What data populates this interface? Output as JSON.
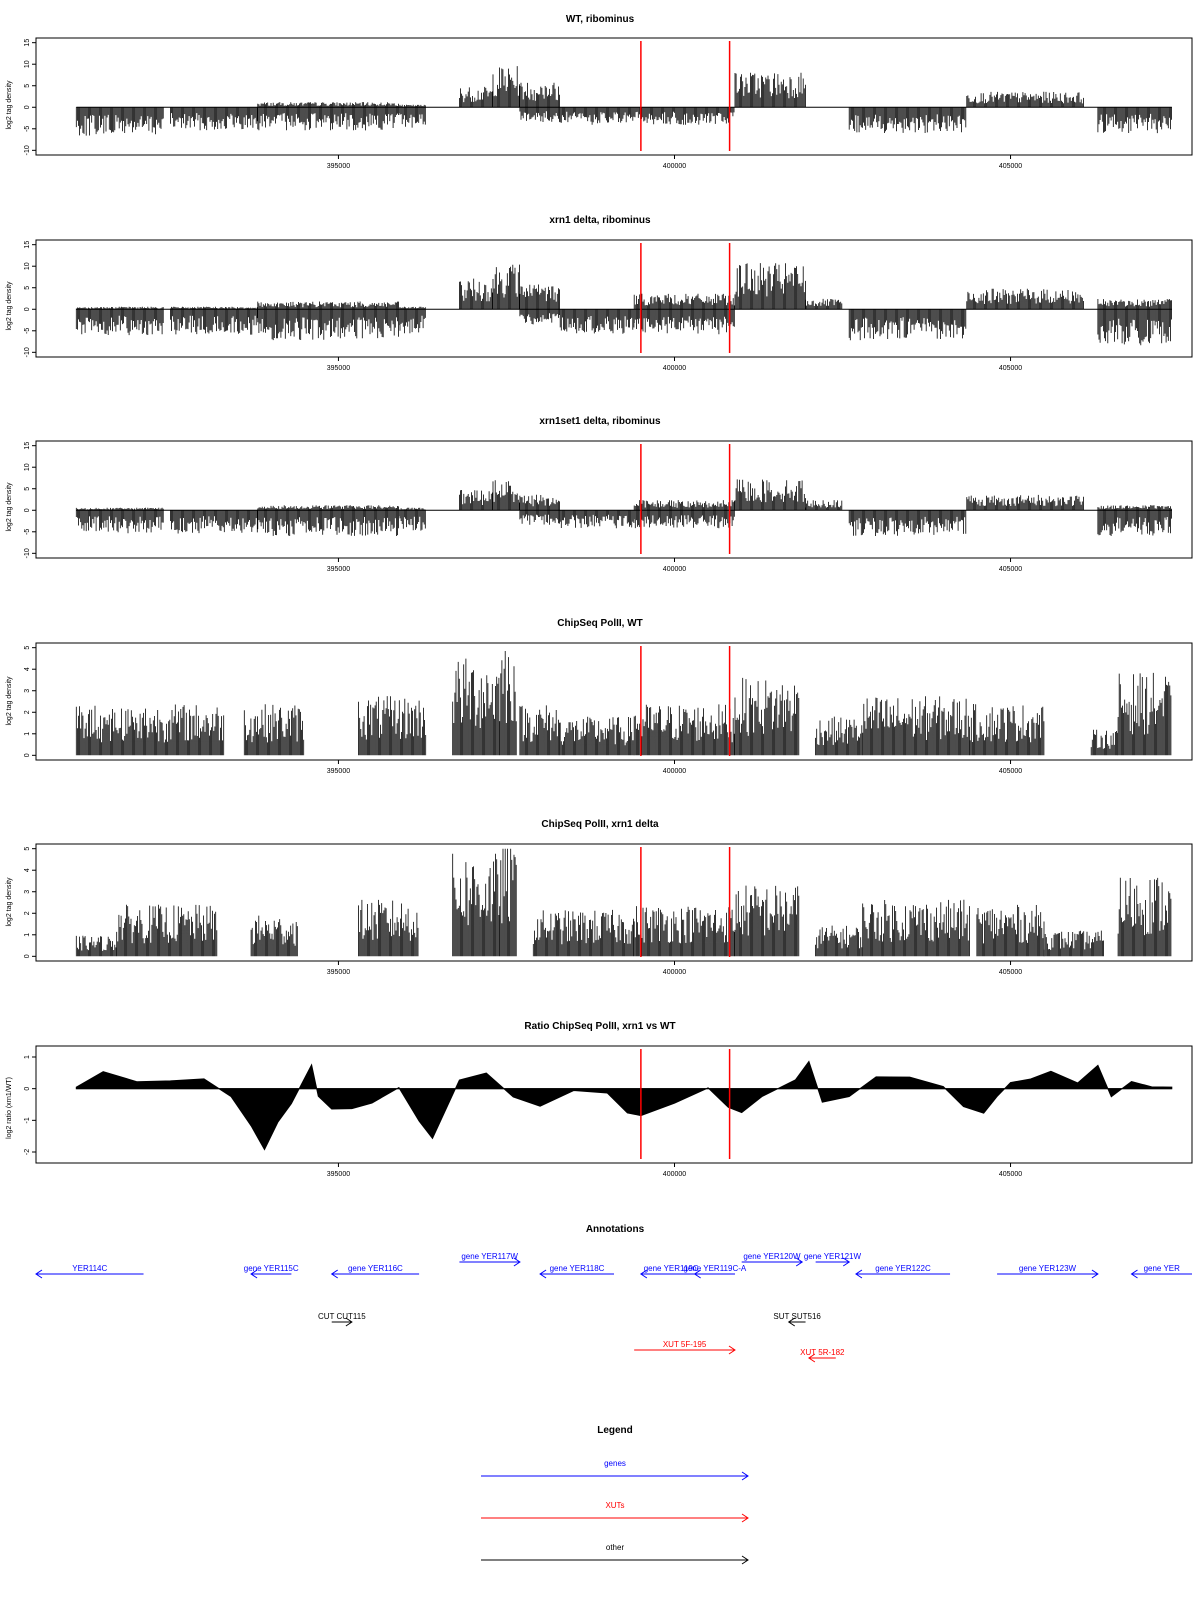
{
  "colors": {
    "genes": "#0000ff",
    "xuts": "#ff0000",
    "other": "#000000",
    "marker": "#ff0000",
    "data": "#000000"
  },
  "chart_data": [
    {
      "type": "bar",
      "id": "wt_ribominus",
      "title": "WT, ribominus",
      "ylabel": "log2 tag density",
      "ylim": [
        -10,
        15
      ],
      "yticks": [
        "-10",
        "-5",
        "0",
        "5",
        "10",
        "15"
      ],
      "xlim": [
        390500,
        407700
      ],
      "xticks": [
        "395000",
        "400000",
        "405000"
      ],
      "markers": [
        399500,
        400820
      ],
      "segments": [
        {
          "x": [
            391100,
            392400
          ],
          "pos": 0,
          "neg": -5.5
        },
        {
          "x": [
            392500,
            393800
          ],
          "pos": 0,
          "neg": -4.5
        },
        {
          "x": [
            393800,
            395900
          ],
          "pos": 1,
          "neg": -4.5
        },
        {
          "x": [
            395900,
            396300
          ],
          "pos": 0.5,
          "neg": -4
        },
        {
          "x": [
            396800,
            397300
          ],
          "pos": 4,
          "neg": 0
        },
        {
          "x": [
            397300,
            397700
          ],
          "pos": 8,
          "neg": 0
        },
        {
          "x": [
            397700,
            398300
          ],
          "pos": 5,
          "neg": -3
        },
        {
          "x": [
            398300,
            400900
          ],
          "pos": 0,
          "neg": -3.5
        },
        {
          "x": [
            400900,
            401950
          ],
          "pos": 7,
          "neg": 0
        },
        {
          "x": [
            402600,
            404350
          ],
          "pos": 0,
          "neg": -5
        },
        {
          "x": [
            404350,
            406100
          ],
          "pos": 3,
          "neg": 0
        },
        {
          "x": [
            406300,
            407400
          ],
          "pos": 0,
          "neg": -5
        }
      ]
    },
    {
      "type": "bar",
      "id": "xrn1_ribominus",
      "title": "xrn1 delta, ribominus",
      "ylabel": "log2 tag density",
      "ylim": [
        -10,
        15
      ],
      "yticks": [
        "-10",
        "-5",
        "0",
        "5",
        "10",
        "15"
      ],
      "xlim": [
        390500,
        407700
      ],
      "xticks": [
        "395000",
        "400000",
        "405000"
      ],
      "markers": [
        399500,
        400820
      ],
      "segments": [
        {
          "x": [
            391100,
            392400
          ],
          "pos": 0.5,
          "neg": -5
        },
        {
          "x": [
            392500,
            393800
          ],
          "pos": 0.5,
          "neg": -5
        },
        {
          "x": [
            393800,
            395900
          ],
          "pos": 1.5,
          "neg": -6
        },
        {
          "x": [
            395900,
            396300
          ],
          "pos": 0.5,
          "neg": -5
        },
        {
          "x": [
            396800,
            397300
          ],
          "pos": 6,
          "neg": 0
        },
        {
          "x": [
            397300,
            397700
          ],
          "pos": 9,
          "neg": 0
        },
        {
          "x": [
            397700,
            398300
          ],
          "pos": 5,
          "neg": -3
        },
        {
          "x": [
            398300,
            399400
          ],
          "pos": 0,
          "neg": -5
        },
        {
          "x": [
            399400,
            400900
          ],
          "pos": 3,
          "neg": -5
        },
        {
          "x": [
            400900,
            401950
          ],
          "pos": 9,
          "neg": 0
        },
        {
          "x": [
            401950,
            402500
          ],
          "pos": 2,
          "neg": 0
        },
        {
          "x": [
            402600,
            404350
          ],
          "pos": 0,
          "neg": -6
        },
        {
          "x": [
            404350,
            406100
          ],
          "pos": 4,
          "neg": 0
        },
        {
          "x": [
            406300,
            407400
          ],
          "pos": 2,
          "neg": -7
        }
      ]
    },
    {
      "type": "bar",
      "id": "xrn1set1_ribominus",
      "title": "xrn1set1 delta, ribominus",
      "ylabel": "log2 tag density",
      "ylim": [
        -10,
        15
      ],
      "yticks": [
        "-10",
        "-5",
        "0",
        "5",
        "10",
        "15"
      ],
      "xlim": [
        390500,
        407700
      ],
      "xticks": [
        "395000",
        "400000",
        "405000"
      ],
      "markers": [
        399500,
        400820
      ],
      "segments": [
        {
          "x": [
            391100,
            392400
          ],
          "pos": 0.5,
          "neg": -4.5
        },
        {
          "x": [
            392500,
            393800
          ],
          "pos": 0,
          "neg": -4.5
        },
        {
          "x": [
            393800,
            395900
          ],
          "pos": 1,
          "neg": -5
        },
        {
          "x": [
            395900,
            396300
          ],
          "pos": 0.5,
          "neg": -4
        },
        {
          "x": [
            396800,
            397300
          ],
          "pos": 4,
          "neg": 0
        },
        {
          "x": [
            397300,
            397700
          ],
          "pos": 6,
          "neg": 0
        },
        {
          "x": [
            397700,
            398300
          ],
          "pos": 3,
          "neg": -3
        },
        {
          "x": [
            398300,
            399400
          ],
          "pos": 0,
          "neg": -3.5
        },
        {
          "x": [
            399400,
            400900
          ],
          "pos": 2,
          "neg": -3.5
        },
        {
          "x": [
            400900,
            401950
          ],
          "pos": 6,
          "neg": 0
        },
        {
          "x": [
            401950,
            402500
          ],
          "pos": 2,
          "neg": 0
        },
        {
          "x": [
            402600,
            404350
          ],
          "pos": 0,
          "neg": -5
        },
        {
          "x": [
            404350,
            406100
          ],
          "pos": 3,
          "neg": 0
        },
        {
          "x": [
            406300,
            407400
          ],
          "pos": 1,
          "neg": -5
        }
      ]
    },
    {
      "type": "bar",
      "id": "chipseq_wt",
      "title": "ChipSeq PolII, WT",
      "ylabel": "log2 tag density",
      "ylim": [
        0,
        5
      ],
      "yticks": [
        "0",
        "1",
        "2",
        "3",
        "4",
        "5"
      ],
      "xlim": [
        390500,
        407700
      ],
      "xticks": [
        "395000",
        "400000",
        "405000"
      ],
      "markers": [
        399500,
        400820
      ],
      "segments": [
        {
          "x": [
            391100,
            393300
          ],
          "pos": 2
        },
        {
          "x": [
            393600,
            394500
          ],
          "pos": 2
        },
        {
          "x": [
            395300,
            396300
          ],
          "pos": 2.3
        },
        {
          "x": [
            396700,
            397400
          ],
          "pos": 3.8
        },
        {
          "x": [
            397400,
            397650
          ],
          "pos": 4.6
        },
        {
          "x": [
            397700,
            398300
          ],
          "pos": 2
        },
        {
          "x": [
            398300,
            399400
          ],
          "pos": 1.5
        },
        {
          "x": [
            399400,
            400900
          ],
          "pos": 2
        },
        {
          "x": [
            400900,
            401850
          ],
          "pos": 3
        },
        {
          "x": [
            402100,
            402800
          ],
          "pos": 1.5
        },
        {
          "x": [
            402800,
            404400
          ],
          "pos": 2.3
        },
        {
          "x": [
            404400,
            405500
          ],
          "pos": 2
        },
        {
          "x": [
            406200,
            406600
          ],
          "pos": 1
        },
        {
          "x": [
            406600,
            407400
          ],
          "pos": 3.2
        }
      ]
    },
    {
      "type": "bar",
      "id": "chipseq_xrn1",
      "title": "ChipSeq PolII, xrn1 delta",
      "ylabel": "log2 tag density",
      "ylim": [
        0,
        5
      ],
      "yticks": [
        "0",
        "1",
        "2",
        "3",
        "4",
        "5"
      ],
      "xlim": [
        390500,
        407700
      ],
      "xticks": [
        "395000",
        "400000",
        "405000"
      ],
      "markers": [
        399500,
        400820
      ],
      "segments": [
        {
          "x": [
            391100,
            391700
          ],
          "pos": 0.8
        },
        {
          "x": [
            391700,
            393200
          ],
          "pos": 2
        },
        {
          "x": [
            393700,
            394400
          ],
          "pos": 1.6
        },
        {
          "x": [
            395300,
            396200
          ],
          "pos": 2.2
        },
        {
          "x": [
            396700,
            397400
          ],
          "pos": 4
        },
        {
          "x": [
            397400,
            397650
          ],
          "pos": 4.4
        },
        {
          "x": [
            397900,
            399400
          ],
          "pos": 1.8
        },
        {
          "x": [
            399400,
            400900
          ],
          "pos": 2
        },
        {
          "x": [
            400900,
            401850
          ],
          "pos": 2.8
        },
        {
          "x": [
            402100,
            402800
          ],
          "pos": 1.2
        },
        {
          "x": [
            402800,
            404400
          ],
          "pos": 2.2
        },
        {
          "x": [
            404500,
            405500
          ],
          "pos": 2
        },
        {
          "x": [
            405500,
            406400
          ],
          "pos": 1
        },
        {
          "x": [
            406600,
            407400
          ],
          "pos": 3.2
        }
      ]
    },
    {
      "type": "area",
      "id": "ratio_chipseq",
      "title": "Ratio ChipSeq PolII, xrn1 vs WT",
      "ylabel": "log2 ratio (xrn1/WT)",
      "ylim": [
        -2.2,
        1.2
      ],
      "yticks": [
        "-2",
        "-1",
        "0",
        "1"
      ],
      "xlim": [
        390500,
        407700
      ],
      "xticks": [
        "395000",
        "400000",
        "405000"
      ],
      "markers": [
        399500,
        400820
      ],
      "x": [
        391100,
        391500,
        392000,
        392500,
        393000,
        393400,
        393700,
        393900,
        394100,
        394300,
        394600,
        394700,
        394900,
        395200,
        395500,
        395900,
        396200,
        396400,
        396800,
        397200,
        397600,
        398000,
        398500,
        399000,
        399300,
        399500,
        400000,
        400500,
        400800,
        401000,
        401300,
        401800,
        402000,
        402200,
        402600,
        403000,
        403500,
        404000,
        404300,
        404600,
        404800,
        405000,
        405300,
        405600,
        406000,
        406300,
        406500,
        406800,
        407100,
        407400
      ],
      "values": [
        0,
        0.5,
        0.2,
        0.2,
        0.3,
        -0.2,
        -1.2,
        -2.0,
        -1.0,
        -0.5,
        0.8,
        -0.3,
        -0.6,
        -0.7,
        -0.5,
        0.1,
        -1.0,
        -1.5,
        0.2,
        0.5,
        -0.2,
        -0.6,
        0,
        -0.2,
        -0.7,
        -0.8,
        -0.4,
        0,
        -0.6,
        -0.8,
        -0.3,
        0.3,
        0.8,
        -0.5,
        -0.3,
        0.3,
        0.4,
        0.1,
        -0.5,
        -0.8,
        -0.3,
        0.2,
        0.3,
        0.5,
        0.2,
        0.8,
        -0.3,
        0.3,
        0.1,
        0.1
      ]
    }
  ],
  "annotations": {
    "title": "Annotations",
    "xlim": [
      390500,
      407700
    ],
    "items": [
      {
        "label": "YER114C",
        "start": 390500,
        "end": 392100,
        "dir": "left",
        "row": 0,
        "cat": "genes"
      },
      {
        "label": "gene YER115C",
        "start": 393700,
        "end": 394300,
        "dir": "left",
        "row": 0,
        "cat": "genes"
      },
      {
        "label": "gene YER116C",
        "start": 394900,
        "end": 396200,
        "dir": "left",
        "row": 0,
        "cat": "genes"
      },
      {
        "label": "gene YER117W",
        "start": 396800,
        "end": 397700,
        "dir": "right",
        "row": -1,
        "cat": "genes"
      },
      {
        "label": "gene YER118C",
        "start": 398000,
        "end": 399100,
        "dir": "left",
        "row": 0,
        "cat": "genes"
      },
      {
        "label": "gene YER119C",
        "start": 399500,
        "end": 400400,
        "dir": "left",
        "row": 0,
        "cat": "genes"
      },
      {
        "label": "gene YER119C-A",
        "start": 400300,
        "end": 400900,
        "dir": "left",
        "row": 0,
        "cat": "genes"
      },
      {
        "label": "gene YER120W",
        "start": 401000,
        "end": 401900,
        "dir": "right",
        "row": -1,
        "cat": "genes"
      },
      {
        "label": "gene YER121W",
        "start": 402100,
        "end": 402600,
        "dir": "right",
        "row": -1,
        "cat": "genes"
      },
      {
        "label": "gene YER122C",
        "start": 402700,
        "end": 404100,
        "dir": "left",
        "row": 0,
        "cat": "genes"
      },
      {
        "label": "gene YER123W",
        "start": 404800,
        "end": 406300,
        "dir": "right",
        "row": 0,
        "cat": "genes"
      },
      {
        "label": "gene YER",
        "start": 406800,
        "end": 407700,
        "dir": "left",
        "row": 0,
        "cat": "genes"
      },
      {
        "label": "CUT CUT115",
        "start": 394900,
        "end": 395200,
        "dir": "right",
        "row": 1,
        "cat": "other"
      },
      {
        "label": "SUT SUT516",
        "start": 401700,
        "end": 401950,
        "dir": "left",
        "row": 1,
        "cat": "other"
      },
      {
        "label": "XUT 5F-195",
        "start": 399400,
        "end": 400900,
        "dir": "right",
        "row": 2,
        "cat": "xuts"
      },
      {
        "label": "XUT 5R-182",
        "start": 402000,
        "end": 402400,
        "dir": "left",
        "row": 3,
        "cat": "xuts"
      }
    ]
  },
  "legend": {
    "title": "Legend",
    "items": [
      {
        "label": "genes",
        "cat": "genes"
      },
      {
        "label": "XUTs",
        "cat": "xuts"
      },
      {
        "label": "other",
        "cat": "other"
      }
    ]
  }
}
